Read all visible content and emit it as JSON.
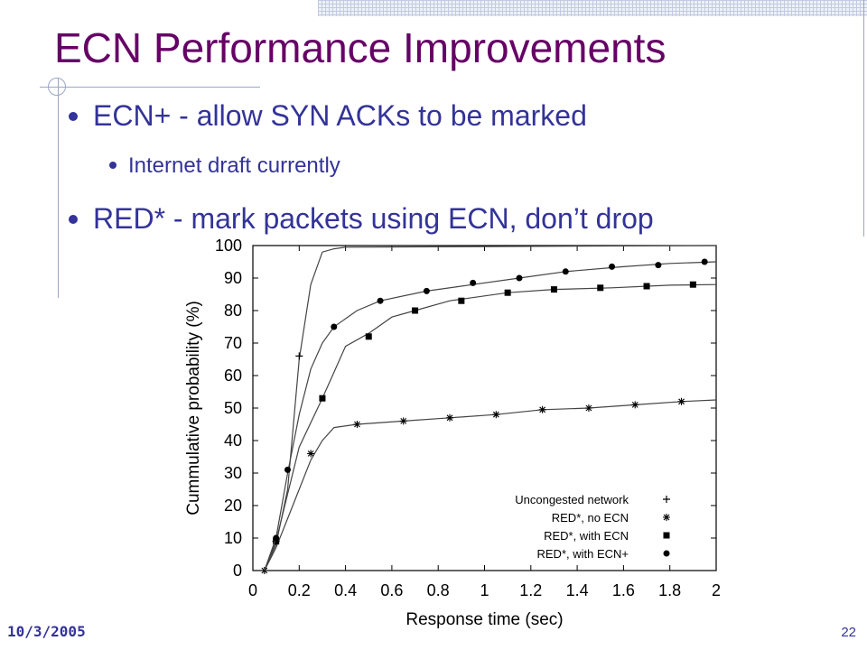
{
  "slide": {
    "title": "ECN Performance Improvements",
    "bullets": [
      {
        "text": "ECN+ - allow SYN ACKs to be marked",
        "level": 1
      },
      {
        "text": "Internet draft currently",
        "level": 2
      },
      {
        "text": "RED* - mark packets using ECN, don’t drop",
        "level": 1
      }
    ],
    "footer_date": "10/3/2005",
    "page_number": "22"
  },
  "colors": {
    "title": "#660066",
    "bullet_text": "#333399",
    "chart_ink": "#000000",
    "curve": "#444444"
  },
  "chart_data": {
    "type": "line",
    "title": "",
    "xlabel": "Response time (sec)",
    "ylabel": "Cummulative probability (%)",
    "xlim": [
      0,
      2
    ],
    "ylim": [
      0,
      100
    ],
    "xticks": [
      0,
      0.2,
      0.4,
      0.6,
      0.8,
      1,
      1.2,
      1.4,
      1.6,
      1.8,
      2
    ],
    "xtick_labels": [
      "0",
      "0.2",
      "0.4",
      "0.6",
      "0.8",
      "1",
      "1.2",
      "1.4",
      "1.6",
      "1.8",
      "2"
    ],
    "yticks": [
      0,
      10,
      20,
      30,
      40,
      50,
      60,
      70,
      80,
      90,
      100
    ],
    "ytick_labels": [
      "0",
      "10",
      "20",
      "30",
      "40",
      "50",
      "60",
      "70",
      "80",
      "90",
      "100"
    ],
    "grid": false,
    "legend_position": "bottom-right",
    "series": [
      {
        "name": "Uncongested network",
        "marker": "plus",
        "line": [
          [
            0.05,
            0
          ],
          [
            0.1,
            8
          ],
          [
            0.15,
            25
          ],
          [
            0.2,
            65
          ],
          [
            0.25,
            88
          ],
          [
            0.3,
            98
          ],
          [
            0.35,
            99
          ],
          [
            0.4,
            99.5
          ],
          [
            2,
            100
          ]
        ],
        "markers": [
          [
            0.1,
            9
          ],
          [
            0.2,
            66
          ]
        ]
      },
      {
        "name": "RED*, no ECN",
        "marker": "asterisk",
        "line": [
          [
            0.05,
            0
          ],
          [
            0.1,
            7
          ],
          [
            0.15,
            16
          ],
          [
            0.2,
            25
          ],
          [
            0.25,
            34
          ],
          [
            0.3,
            40
          ],
          [
            0.35,
            44
          ],
          [
            0.45,
            45
          ],
          [
            0.65,
            46
          ],
          [
            0.85,
            47
          ],
          [
            1.05,
            48
          ],
          [
            1.25,
            49.5
          ],
          [
            1.45,
            50
          ],
          [
            1.65,
            51
          ],
          [
            1.85,
            52
          ],
          [
            2,
            52.5
          ]
        ],
        "markers": [
          [
            0.05,
            0
          ],
          [
            0.25,
            36
          ],
          [
            0.45,
            45
          ],
          [
            0.65,
            46
          ],
          [
            0.85,
            47
          ],
          [
            1.05,
            48
          ],
          [
            1.25,
            49.5
          ],
          [
            1.45,
            50
          ],
          [
            1.65,
            51
          ],
          [
            1.85,
            52
          ]
        ]
      },
      {
        "name": "RED*, with ECN",
        "marker": "square",
        "line": [
          [
            0.05,
            0
          ],
          [
            0.1,
            9
          ],
          [
            0.2,
            38
          ],
          [
            0.3,
            53
          ],
          [
            0.35,
            61
          ],
          [
            0.4,
            69
          ],
          [
            0.5,
            73
          ],
          [
            0.6,
            78
          ],
          [
            0.7,
            80
          ],
          [
            0.85,
            83
          ],
          [
            1.1,
            85.5
          ],
          [
            1.3,
            86.5
          ],
          [
            1.55,
            87
          ],
          [
            1.8,
            87.8
          ],
          [
            2,
            88
          ]
        ],
        "markers": [
          [
            0.1,
            9
          ],
          [
            0.3,
            53
          ],
          [
            0.5,
            72
          ],
          [
            0.7,
            80
          ],
          [
            0.9,
            83
          ],
          [
            1.1,
            85.5
          ],
          [
            1.3,
            86.5
          ],
          [
            1.5,
            87
          ],
          [
            1.7,
            87.5
          ],
          [
            1.9,
            88
          ]
        ]
      },
      {
        "name": "RED*, with ECN+",
        "marker": "dot",
        "line": [
          [
            0.05,
            0
          ],
          [
            0.1,
            10
          ],
          [
            0.15,
            30
          ],
          [
            0.2,
            48
          ],
          [
            0.25,
            62
          ],
          [
            0.3,
            70
          ],
          [
            0.35,
            75
          ],
          [
            0.45,
            80
          ],
          [
            0.55,
            83
          ],
          [
            0.75,
            86
          ],
          [
            0.95,
            88
          ],
          [
            1.15,
            90
          ],
          [
            1.35,
            92
          ],
          [
            1.6,
            93.5
          ],
          [
            1.8,
            94.5
          ],
          [
            2,
            95
          ]
        ],
        "markers": [
          [
            0.1,
            10
          ],
          [
            0.15,
            31
          ],
          [
            0.35,
            75
          ],
          [
            0.55,
            83
          ],
          [
            0.75,
            86
          ],
          [
            0.95,
            88.5
          ],
          [
            1.15,
            90
          ],
          [
            1.35,
            92
          ],
          [
            1.55,
            93.5
          ],
          [
            1.75,
            94
          ],
          [
            1.95,
            95
          ]
        ]
      }
    ]
  }
}
